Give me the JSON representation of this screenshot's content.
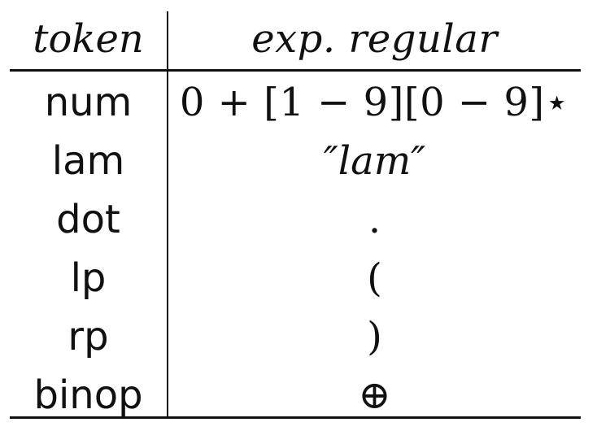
{
  "table": {
    "headers": {
      "token": "token",
      "regular_expression": "exp. regular"
    },
    "rows": [
      {
        "token": "num",
        "expression": "0 + [1 − 9][0 − 9]⋆"
      },
      {
        "token": "lam",
        "expression": "″lam″"
      },
      {
        "token": "dot",
        "expression": "."
      },
      {
        "token": "lp",
        "expression": "("
      },
      {
        "token": "rp",
        "expression": ")"
      },
      {
        "token": "binop",
        "expression": "⊕"
      }
    ]
  }
}
